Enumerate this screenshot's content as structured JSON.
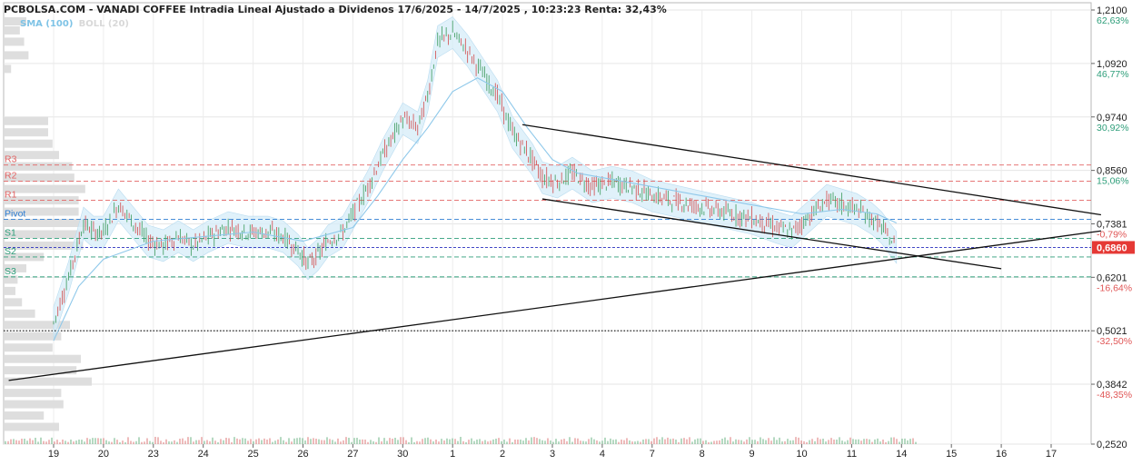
{
  "header": {
    "title": "PCBOLSA.COM - VANADI COFFEE Intradia Lineal Ajustado a Dividenos 17/6/2025 - 14/7/2025 , 10:23:23 Renta: 32,43%"
  },
  "legend": {
    "sma": "SMA (100)",
    "boll": "BOLL (20)"
  },
  "colors": {
    "price_up": "#3a9a5a",
    "price_down": "#d24a4a",
    "sma": "#8ec8ea",
    "boll_fill": "#d6ecf8",
    "resistance": "#e26464",
    "pivot": "#2f7fd3",
    "support": "#2e9e7a",
    "current_label_bg": "#e53935",
    "volume_profile": "#dedede",
    "pct_positive": "#2e9e7a",
    "pct_negative": "#e05656"
  },
  "chart_data": {
    "type": "line",
    "x_categories": [
      "19",
      "20",
      "23",
      "24",
      "25",
      "26",
      "27",
      "30",
      "1",
      "2",
      "3",
      "4",
      "7",
      "8",
      "9",
      "10",
      "11",
      "14",
      "15",
      "16",
      "17"
    ],
    "y_ticks": [
      {
        "value": 1.21,
        "label": "1,2100",
        "pct": "62,63%"
      },
      {
        "value": 1.092,
        "label": "1,0920",
        "pct": "46,77%"
      },
      {
        "value": 0.974,
        "label": "0,9740",
        "pct": "30,92%"
      },
      {
        "value": 0.856,
        "label": "0,8560",
        "pct": "15,06%"
      },
      {
        "value": 0.7381,
        "label": "0,7381",
        "pct": "-0,79%"
      },
      {
        "value": 0.6201,
        "label": "0,6201",
        "pct": "-16,64%"
      },
      {
        "value": 0.5021,
        "label": "0,5021",
        "pct": "-32,50%"
      },
      {
        "value": 0.3842,
        "label": "0,3842",
        "pct": "-48,35%"
      },
      {
        "value": 0.252,
        "label": "0,2520",
        "pct": ""
      }
    ],
    "ylim": [
      0.252,
      1.21
    ],
    "current_price": {
      "value": 0.686,
      "label": "0,6860"
    },
    "reference_line": 0.5021,
    "pivots": [
      {
        "name": "R3",
        "value": 0.868
      },
      {
        "name": "R2",
        "value": 0.832
      },
      {
        "name": "R1",
        "value": 0.79
      },
      {
        "name": "Pivot",
        "value": 0.748
      },
      {
        "name": "S1",
        "value": 0.706
      },
      {
        "name": "S2",
        "value": 0.665
      },
      {
        "name": "S3",
        "value": 0.621
      }
    ],
    "price_path": [
      {
        "x": 0.0,
        "y": 0.52
      },
      {
        "x": 0.3,
        "y": 0.62
      },
      {
        "x": 0.6,
        "y": 0.74
      },
      {
        "x": 0.8,
        "y": 0.72
      },
      {
        "x": 1.0,
        "y": 0.72
      },
      {
        "x": 1.3,
        "y": 0.78
      },
      {
        "x": 1.6,
        "y": 0.74
      },
      {
        "x": 1.9,
        "y": 0.7
      },
      {
        "x": 2.2,
        "y": 0.69
      },
      {
        "x": 2.5,
        "y": 0.71
      },
      {
        "x": 2.8,
        "y": 0.69
      },
      {
        "x": 3.1,
        "y": 0.71
      },
      {
        "x": 3.5,
        "y": 0.73
      },
      {
        "x": 3.9,
        "y": 0.72
      },
      {
        "x": 4.3,
        "y": 0.72
      },
      {
        "x": 4.6,
        "y": 0.71
      },
      {
        "x": 4.9,
        "y": 0.68
      },
      {
        "x": 5.1,
        "y": 0.65
      },
      {
        "x": 5.3,
        "y": 0.67
      },
      {
        "x": 5.5,
        "y": 0.7
      },
      {
        "x": 5.8,
        "y": 0.72
      },
      {
        "x": 6.0,
        "y": 0.76
      },
      {
        "x": 6.3,
        "y": 0.82
      },
      {
        "x": 6.6,
        "y": 0.89
      },
      {
        "x": 7.0,
        "y": 0.97
      },
      {
        "x": 7.3,
        "y": 0.95
      },
      {
        "x": 7.5,
        "y": 1.02
      },
      {
        "x": 7.7,
        "y": 1.14
      },
      {
        "x": 8.0,
        "y": 1.16
      },
      {
        "x": 8.3,
        "y": 1.12
      },
      {
        "x": 8.6,
        "y": 1.07
      },
      {
        "x": 8.9,
        "y": 1.02
      },
      {
        "x": 9.2,
        "y": 0.94
      },
      {
        "x": 9.4,
        "y": 0.91
      },
      {
        "x": 9.6,
        "y": 0.88
      },
      {
        "x": 9.8,
        "y": 0.84
      },
      {
        "x": 10.1,
        "y": 0.83
      },
      {
        "x": 10.4,
        "y": 0.85
      },
      {
        "x": 10.8,
        "y": 0.82
      },
      {
        "x": 11.2,
        "y": 0.83
      },
      {
        "x": 11.6,
        "y": 0.82
      },
      {
        "x": 12.0,
        "y": 0.8
      },
      {
        "x": 12.4,
        "y": 0.79
      },
      {
        "x": 12.8,
        "y": 0.78
      },
      {
        "x": 13.2,
        "y": 0.77
      },
      {
        "x": 13.6,
        "y": 0.76
      },
      {
        "x": 14.0,
        "y": 0.75
      },
      {
        "x": 14.5,
        "y": 0.73
      },
      {
        "x": 14.8,
        "y": 0.72
      },
      {
        "x": 15.0,
        "y": 0.74
      },
      {
        "x": 15.2,
        "y": 0.76
      },
      {
        "x": 15.5,
        "y": 0.79
      },
      {
        "x": 15.8,
        "y": 0.78
      },
      {
        "x": 16.1,
        "y": 0.77
      },
      {
        "x": 16.4,
        "y": 0.75
      },
      {
        "x": 16.6,
        "y": 0.73
      },
      {
        "x": 16.8,
        "y": 0.7
      },
      {
        "x": 16.9,
        "y": 0.686
      }
    ],
    "sma_path": [
      {
        "x": 0.0,
        "y": 0.48
      },
      {
        "x": 0.5,
        "y": 0.6
      },
      {
        "x": 1.0,
        "y": 0.66
      },
      {
        "x": 2.0,
        "y": 0.7
      },
      {
        "x": 3.0,
        "y": 0.71
      },
      {
        "x": 4.0,
        "y": 0.72
      },
      {
        "x": 5.0,
        "y": 0.7
      },
      {
        "x": 6.0,
        "y": 0.73
      },
      {
        "x": 6.5,
        "y": 0.8
      },
      {
        "x": 7.0,
        "y": 0.88
      },
      {
        "x": 7.5,
        "y": 0.95
      },
      {
        "x": 8.0,
        "y": 1.03
      },
      {
        "x": 8.5,
        "y": 1.06
      },
      {
        "x": 9.0,
        "y": 1.03
      },
      {
        "x": 9.5,
        "y": 0.95
      },
      {
        "x": 10.0,
        "y": 0.88
      },
      {
        "x": 10.5,
        "y": 0.85
      },
      {
        "x": 11.0,
        "y": 0.84
      },
      {
        "x": 12.0,
        "y": 0.82
      },
      {
        "x": 13.0,
        "y": 0.8
      },
      {
        "x": 14.0,
        "y": 0.78
      },
      {
        "x": 15.0,
        "y": 0.76
      },
      {
        "x": 15.8,
        "y": 0.77
      },
      {
        "x": 16.5,
        "y": 0.76
      },
      {
        "x": 16.9,
        "y": 0.74
      }
    ],
    "trendlines": [
      {
        "x1": 9.4,
        "y1": 0.957,
        "x2": 21.0,
        "y2": 0.758
      },
      {
        "x1": 9.8,
        "y1": 0.793,
        "x2": 19.0,
        "y2": 0.639
      },
      {
        "x1": -0.9,
        "y1": 0.3925,
        "x2": 21.0,
        "y2": 0.7225
      }
    ],
    "volume_profile": [
      {
        "y": 1.185,
        "v": 0.5
      },
      {
        "y": 1.165,
        "v": 0.35
      },
      {
        "y": 1.14,
        "v": 0.45
      },
      {
        "y": 1.11,
        "v": 0.55
      },
      {
        "y": 1.08,
        "v": 0.15
      },
      {
        "y": 0.965,
        "v": 1.0
      },
      {
        "y": 0.94,
        "v": 1.0
      },
      {
        "y": 0.915,
        "v": 1.1
      },
      {
        "y": 0.89,
        "v": 1.25
      },
      {
        "y": 0.865,
        "v": 1.55
      },
      {
        "y": 0.84,
        "v": 1.6
      },
      {
        "y": 0.815,
        "v": 1.85
      },
      {
        "y": 0.79,
        "v": 1.7
      },
      {
        "y": 0.765,
        "v": 1.7
      },
      {
        "y": 0.74,
        "v": 1.9
      },
      {
        "y": 0.715,
        "v": 2.3
      },
      {
        "y": 0.69,
        "v": 1.8
      },
      {
        "y": 0.665,
        "v": 0.9
      },
      {
        "y": 0.64,
        "v": 0.5
      },
      {
        "y": 0.615,
        "v": 0.3
      },
      {
        "y": 0.59,
        "v": 0.25
      },
      {
        "y": 0.565,
        "v": 0.4
      },
      {
        "y": 0.54,
        "v": 0.7
      },
      {
        "y": 0.515,
        "v": 1.5
      },
      {
        "y": 0.49,
        "v": 1.3
      },
      {
        "y": 0.465,
        "v": 1.1
      },
      {
        "y": 0.44,
        "v": 1.75
      },
      {
        "y": 0.415,
        "v": 1.65
      },
      {
        "y": 0.39,
        "v": 2.0
      },
      {
        "y": 0.365,
        "v": 1.3
      },
      {
        "y": 0.34,
        "v": 1.35
      },
      {
        "y": 0.315,
        "v": 0.9
      },
      {
        "y": 0.29,
        "v": 1.25
      }
    ]
  }
}
